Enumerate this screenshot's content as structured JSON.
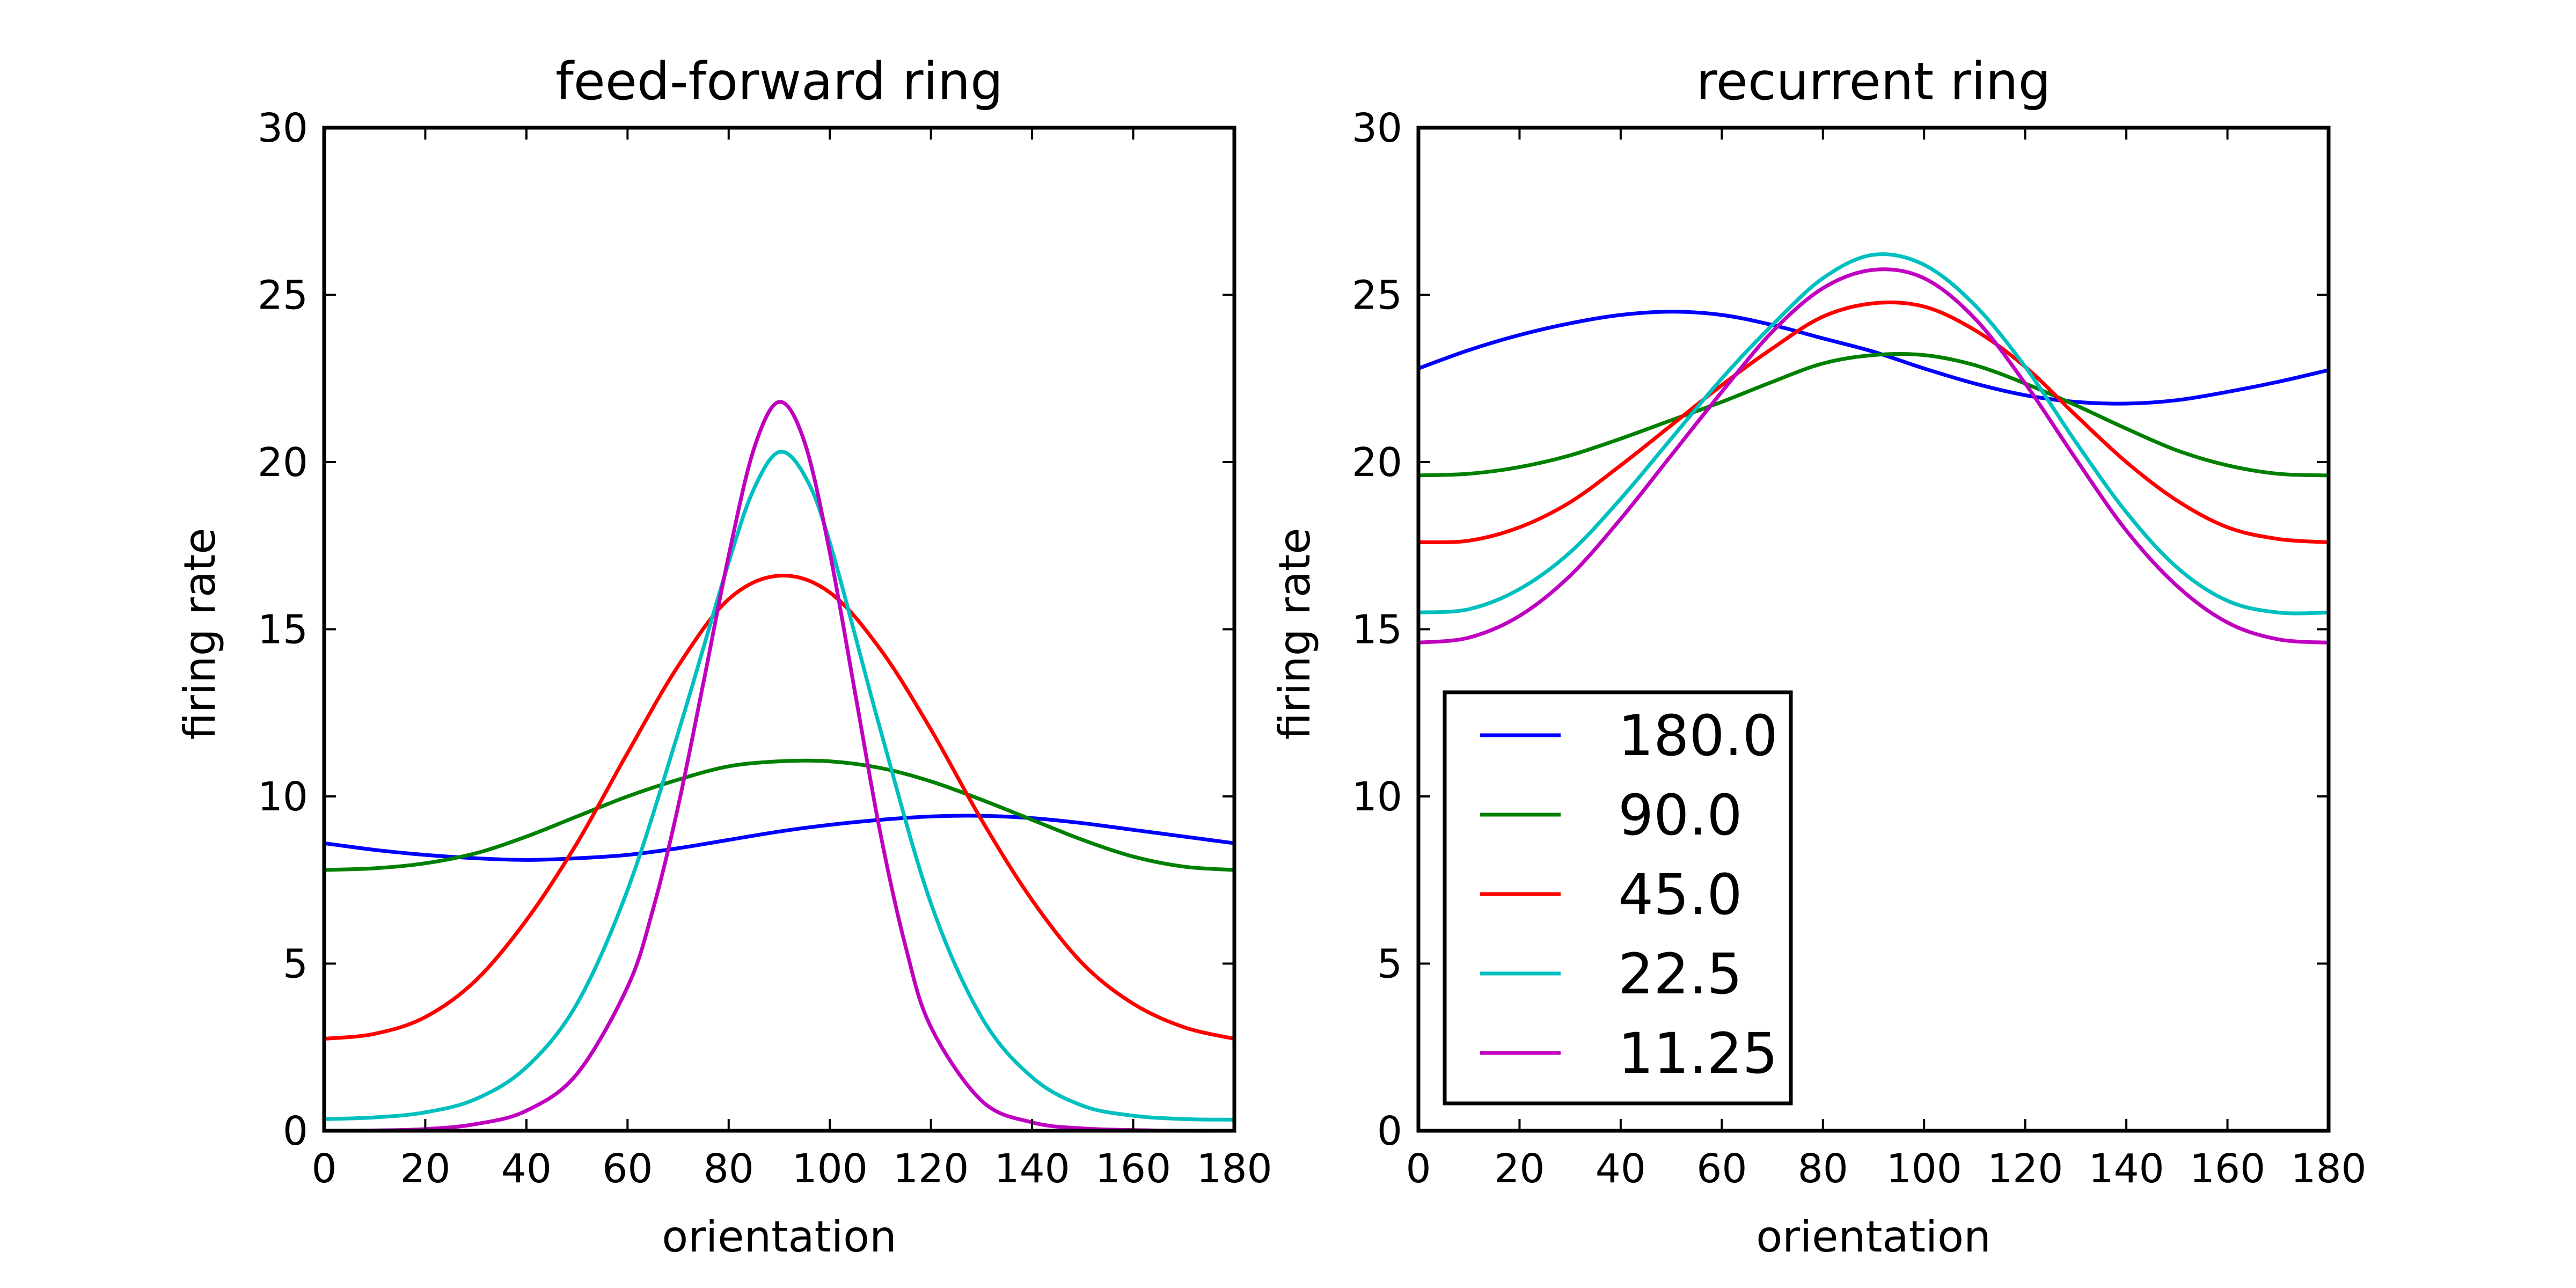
{
  "chart_data": [
    {
      "type": "line",
      "title": "feed-forward ring",
      "xlabel": "orientation",
      "ylabel": "firing rate",
      "xlim": [
        0,
        180
      ],
      "ylim": [
        0,
        30
      ],
      "xticks": [
        0,
        20,
        40,
        60,
        80,
        100,
        120,
        140,
        160,
        180
      ],
      "yticks": [
        0,
        5,
        10,
        15,
        20,
        25,
        30
      ],
      "grid": false,
      "legend": null,
      "series": [
        {
          "name": "180.0",
          "color": "#0000ff",
          "x": [
            0,
            10,
            20,
            30,
            40,
            50,
            60,
            70,
            80,
            90,
            100,
            110,
            120,
            130,
            140,
            150,
            160,
            170,
            180
          ],
          "y": [
            8.6,
            8.4,
            8.25,
            8.15,
            8.1,
            8.15,
            8.25,
            8.45,
            8.7,
            8.95,
            9.15,
            9.3,
            9.4,
            9.42,
            9.35,
            9.2,
            9.0,
            8.8,
            8.6
          ]
        },
        {
          "name": "90.0",
          "color": "#008000",
          "x": [
            0,
            10,
            20,
            30,
            40,
            50,
            60,
            70,
            80,
            90,
            100,
            110,
            120,
            130,
            140,
            150,
            160,
            170,
            180
          ],
          "y": [
            7.8,
            7.85,
            8.0,
            8.3,
            8.8,
            9.4,
            10.0,
            10.5,
            10.9,
            11.05,
            11.05,
            10.85,
            10.45,
            9.9,
            9.3,
            8.7,
            8.2,
            7.9,
            7.8
          ]
        },
        {
          "name": "45.0",
          "color": "#ff0000",
          "x": [
            0,
            10,
            20,
            30,
            40,
            50,
            60,
            70,
            80,
            90,
            100,
            110,
            120,
            130,
            140,
            150,
            160,
            170,
            180
          ],
          "y": [
            2.75,
            2.9,
            3.4,
            4.5,
            6.3,
            8.6,
            11.3,
            13.9,
            15.9,
            16.6,
            16.1,
            14.4,
            12.0,
            9.3,
            6.9,
            5.0,
            3.8,
            3.1,
            2.75
          ]
        },
        {
          "name": "22.5",
          "color": "#00bfbf",
          "x": [
            0,
            10,
            20,
            30,
            40,
            50,
            60,
            70,
            80,
            85,
            90,
            95,
            100,
            110,
            120,
            130,
            140,
            150,
            160,
            170,
            180
          ],
          "y": [
            0.35,
            0.4,
            0.55,
            0.95,
            1.9,
            3.8,
            7.2,
            11.9,
            17.0,
            19.2,
            20.3,
            19.6,
            17.6,
            12.0,
            6.8,
            3.4,
            1.6,
            0.75,
            0.45,
            0.35,
            0.33
          ]
        },
        {
          "name": "11.25",
          "color": "#bf00bf",
          "x": [
            0,
            10,
            20,
            30,
            40,
            50,
            60,
            65,
            70,
            75,
            80,
            85,
            90,
            95,
            100,
            105,
            110,
            115,
            120,
            130,
            140,
            150,
            160,
            170,
            180
          ],
          "y": [
            0.0,
            0.01,
            0.05,
            0.2,
            0.6,
            1.7,
            4.3,
            6.6,
            9.7,
            13.4,
            17.2,
            20.4,
            21.8,
            20.6,
            17.3,
            13.1,
            8.9,
            5.5,
            3.1,
            0.9,
            0.25,
            0.07,
            0.02,
            0.0,
            0.0
          ]
        }
      ]
    },
    {
      "type": "line",
      "title": "recurrent ring",
      "xlabel": "orientation",
      "ylabel": "firing rate",
      "xlim": [
        0,
        180
      ],
      "ylim": [
        0,
        30
      ],
      "xticks": [
        0,
        20,
        40,
        60,
        80,
        100,
        120,
        140,
        160,
        180
      ],
      "yticks": [
        0,
        5,
        10,
        15,
        20,
        25,
        30
      ],
      "grid": false,
      "legend": "lower-left",
      "series": [
        {
          "name": "180.0",
          "color": "#0000ff",
          "x": [
            0,
            10,
            20,
            30,
            40,
            50,
            60,
            70,
            80,
            90,
            100,
            110,
            120,
            130,
            140,
            150,
            160,
            170,
            180
          ],
          "y": [
            22.8,
            23.35,
            23.8,
            24.15,
            24.4,
            24.5,
            24.4,
            24.1,
            23.7,
            23.3,
            22.8,
            22.35,
            22.0,
            21.8,
            21.75,
            21.85,
            22.1,
            22.4,
            22.75
          ]
        },
        {
          "name": "90.0",
          "color": "#008000",
          "x": [
            0,
            10,
            20,
            30,
            40,
            50,
            60,
            70,
            80,
            90,
            100,
            110,
            120,
            130,
            140,
            150,
            160,
            170,
            180
          ],
          "y": [
            19.6,
            19.65,
            19.85,
            20.2,
            20.7,
            21.25,
            21.8,
            22.4,
            22.95,
            23.2,
            23.2,
            22.9,
            22.35,
            21.7,
            21.0,
            20.35,
            19.9,
            19.65,
            19.6
          ]
        },
        {
          "name": "45.0",
          "color": "#ff0000",
          "x": [
            0,
            10,
            20,
            30,
            40,
            50,
            60,
            70,
            80,
            90,
            100,
            110,
            120,
            130,
            140,
            150,
            160,
            170,
            180
          ],
          "y": [
            17.6,
            17.65,
            18.05,
            18.8,
            19.9,
            21.1,
            22.3,
            23.4,
            24.35,
            24.75,
            24.65,
            23.95,
            22.85,
            21.4,
            20.0,
            18.85,
            18.05,
            17.7,
            17.6
          ]
        },
        {
          "name": "22.5",
          "color": "#00bfbf",
          "x": [
            0,
            10,
            20,
            30,
            40,
            50,
            60,
            70,
            80,
            90,
            100,
            110,
            120,
            130,
            140,
            150,
            160,
            170,
            180
          ],
          "y": [
            15.5,
            15.6,
            16.2,
            17.3,
            18.9,
            20.7,
            22.5,
            24.1,
            25.5,
            26.2,
            25.9,
            24.7,
            22.85,
            20.6,
            18.5,
            16.85,
            15.85,
            15.5,
            15.5
          ]
        },
        {
          "name": "11.25",
          "color": "#bf00bf",
          "x": [
            0,
            10,
            20,
            30,
            40,
            50,
            60,
            70,
            80,
            90,
            100,
            110,
            120,
            130,
            140,
            150,
            160,
            170,
            180
          ],
          "y": [
            14.6,
            14.75,
            15.4,
            16.6,
            18.3,
            20.2,
            22.1,
            23.9,
            25.2,
            25.75,
            25.5,
            24.3,
            22.35,
            20.1,
            17.95,
            16.3,
            15.2,
            14.7,
            14.6
          ]
        }
      ]
    }
  ]
}
